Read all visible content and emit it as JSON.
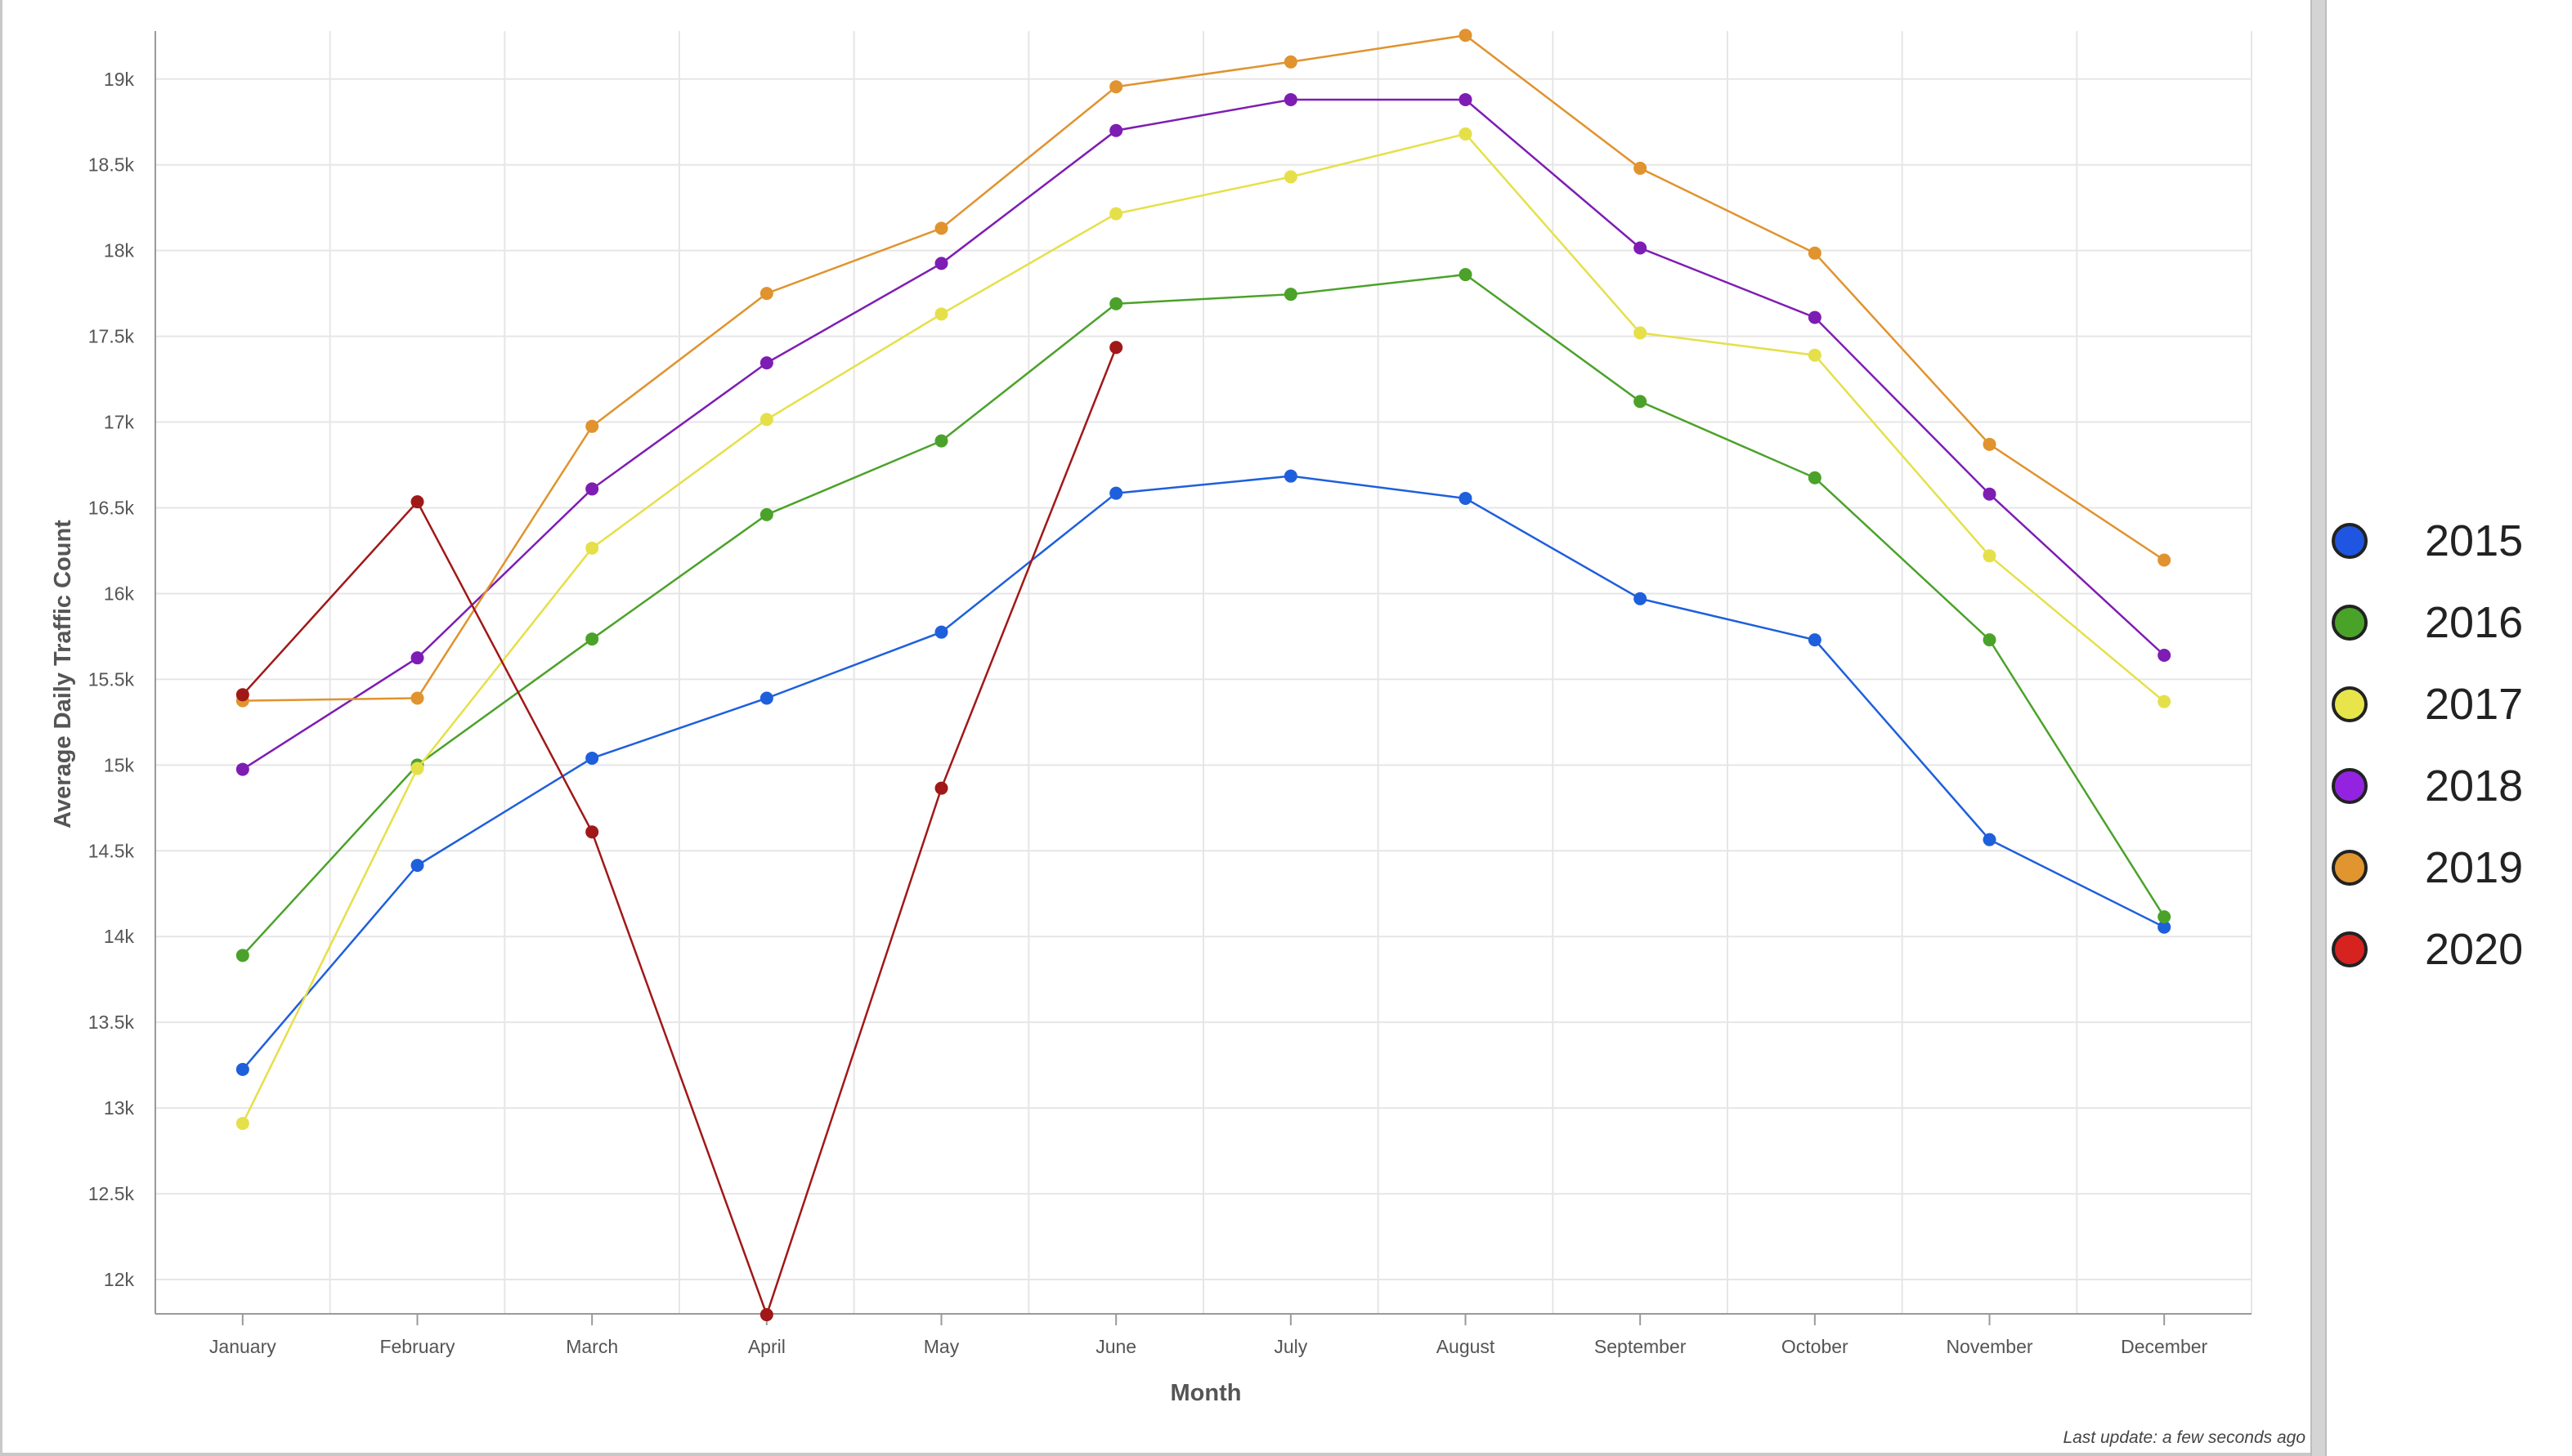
{
  "chart_data": {
    "type": "line",
    "title": "",
    "xlabel": "Month",
    "ylabel": "Average Daily Traffic Count",
    "categories": [
      "January",
      "February",
      "March",
      "April",
      "May",
      "June",
      "July",
      "August",
      "September",
      "October",
      "November",
      "December"
    ],
    "yticks": [
      12000,
      12500,
      13000,
      13500,
      14000,
      14500,
      15000,
      15500,
      16000,
      16500,
      17000,
      17500,
      18000,
      18500,
      19000
    ],
    "ytick_labels": [
      "12k",
      "12.5k",
      "13k",
      "13.5k",
      "14k",
      "14.5k",
      "15k",
      "15.5k",
      "16k",
      "16.5k",
      "17k",
      "17.5k",
      "18k",
      "18.5k",
      "19k"
    ],
    "grid": true,
    "legend_position": "right",
    "series": [
      {
        "name": "2015",
        "color": "#1e5fdc",
        "values": [
          13225,
          14415,
          15040,
          15390,
          15775,
          16585,
          16685,
          16555,
          15970,
          15730,
          14565,
          14055
        ]
      },
      {
        "name": "2016",
        "color": "#4ba22a",
        "values": [
          13890,
          15000,
          15735,
          16460,
          16890,
          17690,
          17745,
          17860,
          17120,
          16675,
          15730,
          14115
        ]
      },
      {
        "name": "2017",
        "color": "#e5e04a",
        "values": [
          12910,
          14980,
          16265,
          17015,
          17630,
          18215,
          18430,
          18680,
          17520,
          17390,
          16220,
          15370
        ]
      },
      {
        "name": "2018",
        "color": "#7e1db3",
        "values": [
          14975,
          15625,
          16610,
          17345,
          17925,
          18700,
          18880,
          18880,
          18015,
          17610,
          16580,
          15640
        ]
      },
      {
        "name": "2019",
        "color": "#e0932e",
        "values": [
          15375,
          15390,
          16975,
          17750,
          18130,
          18955,
          19100,
          19255,
          18480,
          17985,
          16870,
          16195
        ]
      },
      {
        "name": "2020",
        "color": "#a01818",
        "values": [
          15410,
          16535,
          14610,
          11795,
          14865,
          17435,
          null,
          null,
          null,
          null,
          null,
          null
        ]
      }
    ]
  },
  "legend": {
    "items": [
      {
        "label": "2015",
        "color": "#1f55e0"
      },
      {
        "label": "2016",
        "color": "#4aa329"
      },
      {
        "label": "2017",
        "color": "#e8e54a"
      },
      {
        "label": "2018",
        "color": "#9323e0"
      },
      {
        "label": "2019",
        "color": "#e0952f"
      },
      {
        "label": "2020",
        "color": "#d62320"
      }
    ]
  },
  "footer": {
    "last_update": "Last update: a few seconds ago"
  }
}
